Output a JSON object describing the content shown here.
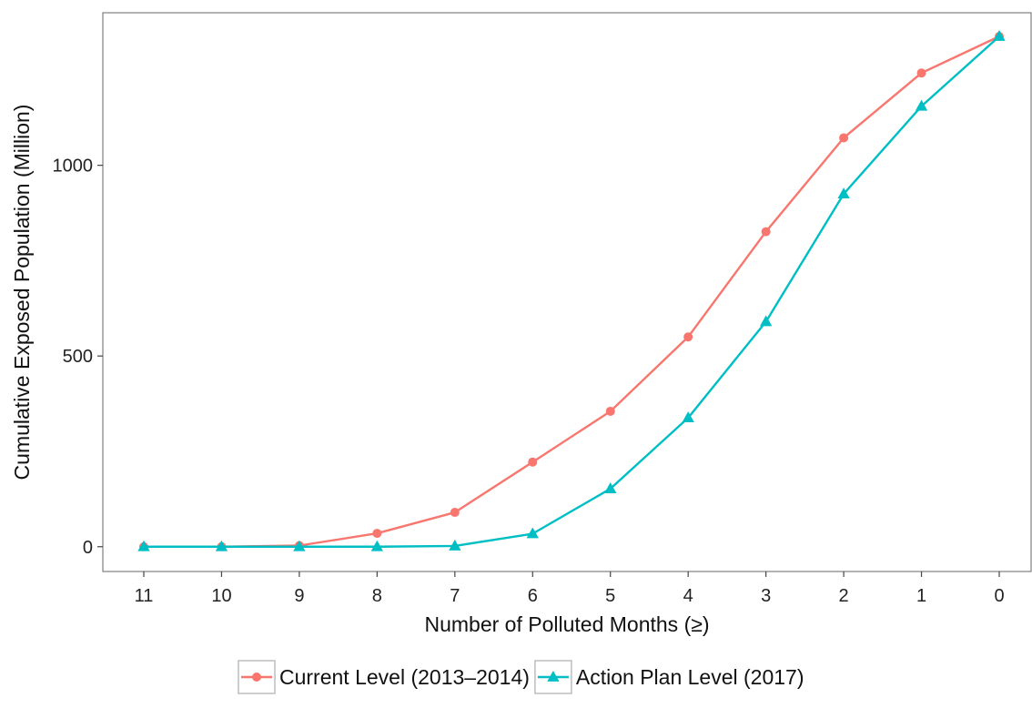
{
  "chart_data": {
    "type": "line",
    "title": "",
    "xlabel": "Number of Polluted Months (≥)",
    "ylabel": "Cumulative Exposed Population (Million)",
    "categories": [
      "11",
      "10",
      "9",
      "8",
      "7",
      "6",
      "5",
      "4",
      "3",
      "2",
      "1",
      "0"
    ],
    "ylim": [
      -65,
      1400
    ],
    "yticks": [
      0,
      500,
      1000
    ],
    "grid": false,
    "legend_position": "bottom",
    "series": [
      {
        "name": "Current Level (2013–2014)",
        "color": "#F8766D",
        "marker": "circle",
        "values": [
          0,
          0,
          3,
          35,
          90,
          222,
          355,
          550,
          826,
          1072,
          1242,
          1338
        ]
      },
      {
        "name": "Action Plan Level (2017)",
        "color": "#00BFC4",
        "marker": "triangle",
        "values": [
          0,
          0,
          0,
          0,
          2,
          34,
          152,
          338,
          590,
          925,
          1155,
          1338
        ]
      }
    ]
  }
}
